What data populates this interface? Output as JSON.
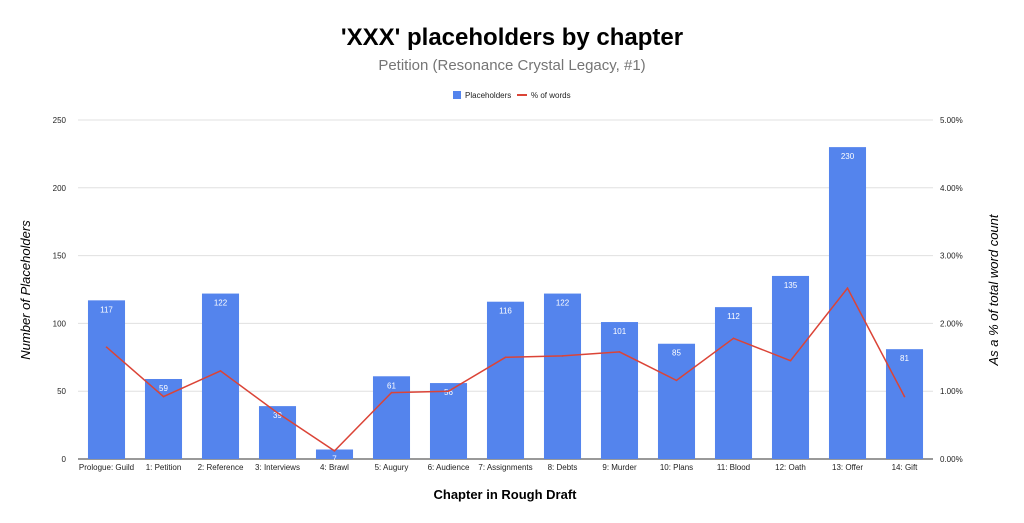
{
  "chart_data": {
    "type": "bar",
    "title": "'XXX' placeholders by chapter",
    "subtitle": "Petition (Resonance Crystal Legacy, #1)",
    "xlabel": "Chapter in Rough Draft",
    "ylabel": "Number of Placeholders",
    "y2label": "As a % of total word count",
    "ylim": [
      0,
      250
    ],
    "y2lim": [
      0,
      5
    ],
    "yticks": [
      "0",
      "50",
      "100",
      "150",
      "200",
      "250"
    ],
    "y2ticks": [
      "0.00%",
      "1.00%",
      "2.00%",
      "3.00%",
      "4.00%",
      "5.00%"
    ],
    "grid": true,
    "legend_position": "top",
    "categories": [
      "Prologue: Guild",
      "1: Petition",
      "2: Reference",
      "3: Interviews",
      "4: Brawl",
      "5: Augury",
      "6: Audience",
      "7: Assignments",
      "8: Debts",
      "9: Murder",
      "10: Plans",
      "11: Blood",
      "12: Oath",
      "13: Offer",
      "14: Gift"
    ],
    "series": [
      {
        "name": "Placeholders",
        "type": "bar",
        "axis": "left",
        "color": "#5484ed",
        "values": [
          117,
          59,
          122,
          39,
          7,
          61,
          56,
          116,
          122,
          101,
          85,
          112,
          135,
          230,
          81
        ],
        "labels": [
          "117",
          "59",
          "122",
          "39",
          "7",
          "61",
          "56",
          "116",
          "122",
          "101",
          "85",
          "112",
          "135",
          "230",
          "81"
        ]
      },
      {
        "name": "% of words",
        "type": "line",
        "axis": "right",
        "color": "#db4437",
        "values": [
          1.65,
          0.92,
          1.3,
          0.68,
          0.12,
          0.98,
          1.0,
          1.5,
          1.52,
          1.58,
          1.16,
          1.78,
          1.45,
          2.52,
          0.92
        ]
      }
    ]
  }
}
